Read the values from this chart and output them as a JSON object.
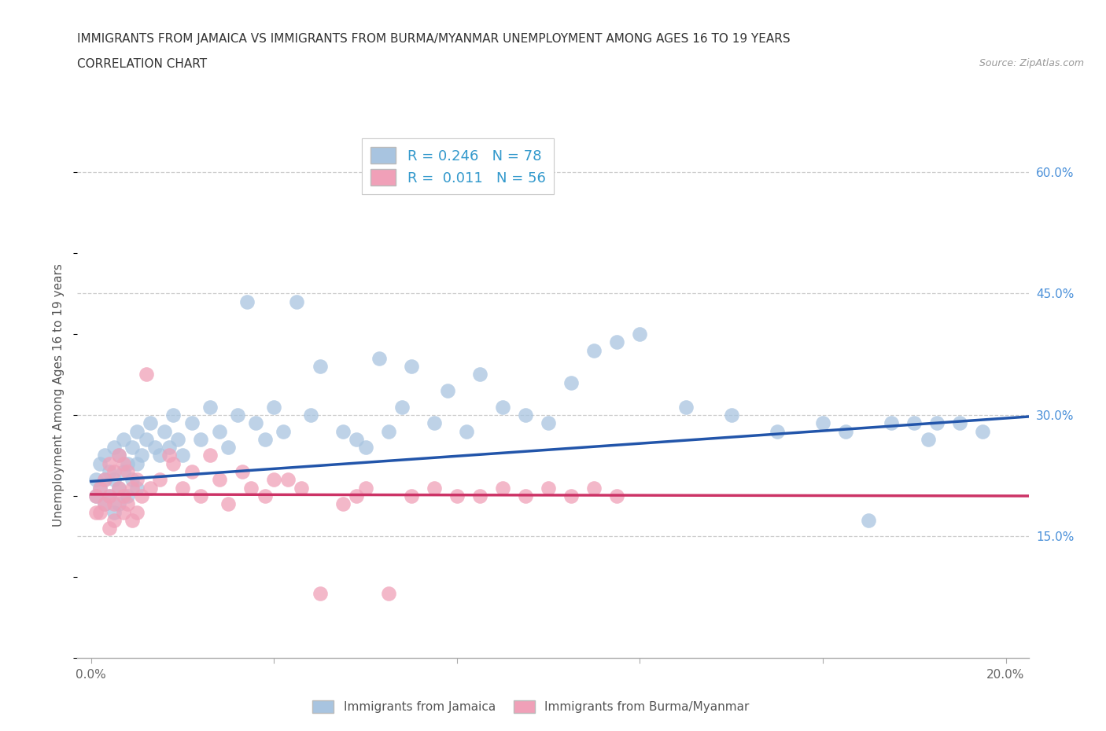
{
  "title_line1": "IMMIGRANTS FROM JAMAICA VS IMMIGRANTS FROM BURMA/MYANMAR UNEMPLOYMENT AMONG AGES 16 TO 19 YEARS",
  "title_line2": "CORRELATION CHART",
  "source_text": "Source: ZipAtlas.com",
  "ylabel": "Unemployment Among Ages 16 to 19 years",
  "xlim": [
    -0.003,
    0.205
  ],
  "ylim": [
    0.0,
    0.65
  ],
  "yticks": [
    0.15,
    0.3,
    0.45,
    0.6
  ],
  "yticklabels": [
    "15.0%",
    "30.0%",
    "45.0%",
    "60.0%"
  ],
  "jamaica_color": "#a8c4e0",
  "burma_color": "#f0a0b8",
  "jamaica_R": 0.246,
  "jamaica_N": 78,
  "burma_R": 0.011,
  "burma_N": 56,
  "trend_jamaica_color": "#2255aa",
  "trend_burma_color": "#cc3366",
  "background_color": "#ffffff",
  "grid_color": "#cccccc",
  "legend_text_color": "#3399cc",
  "jamaica_x": [
    0.001,
    0.001,
    0.002,
    0.002,
    0.003,
    0.003,
    0.003,
    0.004,
    0.004,
    0.005,
    0.005,
    0.005,
    0.006,
    0.006,
    0.006,
    0.007,
    0.007,
    0.008,
    0.008,
    0.009,
    0.009,
    0.01,
    0.01,
    0.01,
    0.011,
    0.012,
    0.013,
    0.014,
    0.015,
    0.016,
    0.017,
    0.018,
    0.019,
    0.02,
    0.022,
    0.024,
    0.026,
    0.028,
    0.03,
    0.032,
    0.034,
    0.036,
    0.038,
    0.04,
    0.042,
    0.045,
    0.048,
    0.05,
    0.055,
    0.058,
    0.06,
    0.063,
    0.065,
    0.068,
    0.07,
    0.075,
    0.078,
    0.082,
    0.085,
    0.09,
    0.095,
    0.1,
    0.105,
    0.11,
    0.115,
    0.12,
    0.13,
    0.14,
    0.15,
    0.16,
    0.165,
    0.17,
    0.175,
    0.18,
    0.183,
    0.185,
    0.19,
    0.195
  ],
  "jamaica_y": [
    0.22,
    0.2,
    0.24,
    0.21,
    0.25,
    0.22,
    0.19,
    0.23,
    0.2,
    0.26,
    0.22,
    0.18,
    0.25,
    0.21,
    0.19,
    0.27,
    0.23,
    0.24,
    0.2,
    0.26,
    0.22,
    0.28,
    0.24,
    0.21,
    0.25,
    0.27,
    0.29,
    0.26,
    0.25,
    0.28,
    0.26,
    0.3,
    0.27,
    0.25,
    0.29,
    0.27,
    0.31,
    0.28,
    0.26,
    0.3,
    0.44,
    0.29,
    0.27,
    0.31,
    0.28,
    0.44,
    0.3,
    0.36,
    0.28,
    0.27,
    0.26,
    0.37,
    0.28,
    0.31,
    0.36,
    0.29,
    0.33,
    0.28,
    0.35,
    0.31,
    0.3,
    0.29,
    0.34,
    0.38,
    0.39,
    0.4,
    0.31,
    0.3,
    0.28,
    0.29,
    0.28,
    0.17,
    0.29,
    0.29,
    0.27,
    0.29,
    0.29,
    0.28
  ],
  "burma_x": [
    0.001,
    0.001,
    0.002,
    0.002,
    0.003,
    0.003,
    0.004,
    0.004,
    0.004,
    0.005,
    0.005,
    0.005,
    0.006,
    0.006,
    0.007,
    0.007,
    0.007,
    0.008,
    0.008,
    0.009,
    0.009,
    0.01,
    0.01,
    0.011,
    0.012,
    0.013,
    0.015,
    0.017,
    0.018,
    0.02,
    0.022,
    0.024,
    0.026,
    0.028,
    0.03,
    0.033,
    0.035,
    0.038,
    0.04,
    0.043,
    0.046,
    0.05,
    0.055,
    0.058,
    0.06,
    0.065,
    0.07,
    0.075,
    0.08,
    0.085,
    0.09,
    0.095,
    0.1,
    0.105,
    0.11,
    0.115
  ],
  "burma_y": [
    0.2,
    0.18,
    0.21,
    0.18,
    0.22,
    0.19,
    0.24,
    0.2,
    0.16,
    0.23,
    0.19,
    0.17,
    0.25,
    0.21,
    0.24,
    0.2,
    0.18,
    0.23,
    0.19,
    0.21,
    0.17,
    0.22,
    0.18,
    0.2,
    0.35,
    0.21,
    0.22,
    0.25,
    0.24,
    0.21,
    0.23,
    0.2,
    0.25,
    0.22,
    0.19,
    0.23,
    0.21,
    0.2,
    0.22,
    0.22,
    0.21,
    0.08,
    0.19,
    0.2,
    0.21,
    0.08,
    0.2,
    0.21,
    0.2,
    0.2,
    0.21,
    0.2,
    0.21,
    0.2,
    0.21,
    0.2
  ],
  "jamaica_trend_x0": 0.0,
  "jamaica_trend_x1": 0.205,
  "jamaica_trend_y0": 0.218,
  "jamaica_trend_y1": 0.298,
  "burma_trend_x0": 0.0,
  "burma_trend_x1": 0.205,
  "burma_trend_y0": 0.202,
  "burma_trend_y1": 0.2
}
